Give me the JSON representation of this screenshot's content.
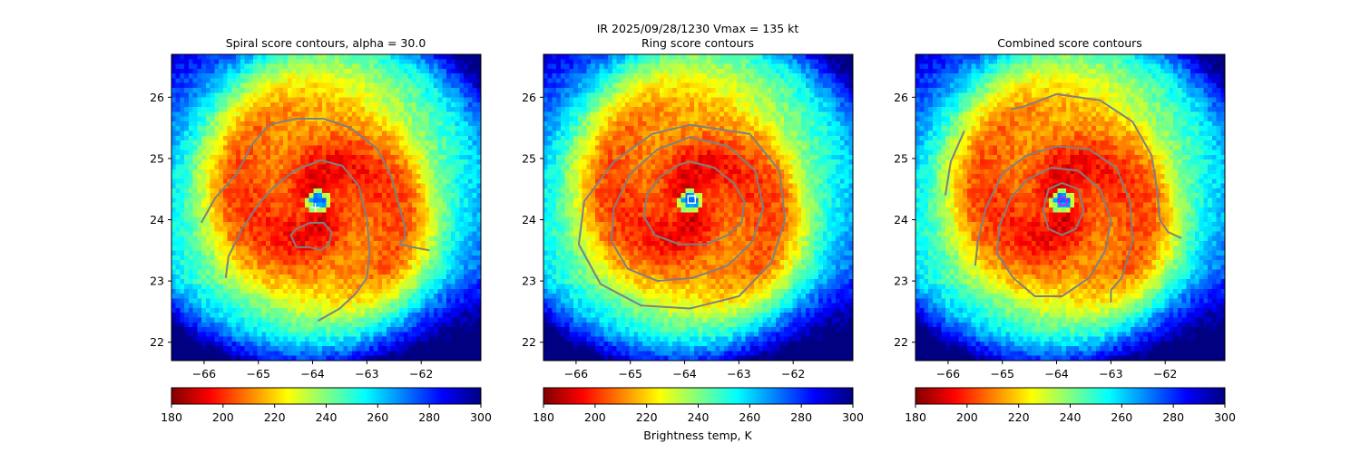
{
  "figure": {
    "suptitle": "IR  2025/09/28/1230    Vmax = 135 kt",
    "colorbar_label": "Brightness temp, K"
  },
  "colormap": {
    "name": "jet_r",
    "stops": [
      "#800000",
      "#ff0000",
      "#ff8000",
      "#ffff00",
      "#80ff80",
      "#00ffff",
      "#0080ff",
      "#0000ff",
      "#000080"
    ],
    "range": [
      180,
      300
    ],
    "ticks": [
      180,
      200,
      220,
      240,
      260,
      280,
      300
    ],
    "contour_color": "#808080"
  },
  "chart_data": [
    {
      "type": "heatmap",
      "title": "Spiral score contours, alpha = 30.0",
      "xlim": [
        -66.6,
        -60.9
      ],
      "ylim": [
        21.7,
        26.7
      ],
      "xticks": [
        -66,
        -65,
        -64,
        -63,
        -62
      ],
      "yticks": [
        22,
        23,
        24,
        25,
        26
      ],
      "eye_center": [
        -63.9,
        24.3
      ],
      "marker": {
        "type": "plus",
        "lon": -63.95,
        "lat": 24.2,
        "color": "#ffffff"
      },
      "contours": [
        {
          "lon": [
            -66.05,
            -65.8,
            -65.4,
            -65.1,
            -64.8,
            -64.3,
            -63.8,
            -63.3,
            -62.8,
            -62.55,
            -62.4,
            -62.3,
            -62.3,
            -62.4,
            -62.15,
            -61.85
          ],
          "lat": [
            23.95,
            24.35,
            24.75,
            25.25,
            25.55,
            25.65,
            25.65,
            25.5,
            25.15,
            24.7,
            24.2,
            23.9,
            23.7,
            23.6,
            23.55,
            23.5
          ]
        },
        {
          "lon": [
            -65.6,
            -65.55,
            -65.3,
            -65.0,
            -64.7,
            -64.3,
            -63.85,
            -63.45,
            -63.15,
            -63.0,
            -62.95,
            -63.0,
            -63.2,
            -63.5,
            -63.9
          ],
          "lat": [
            23.05,
            23.4,
            23.85,
            24.25,
            24.55,
            24.82,
            24.97,
            24.88,
            24.55,
            24.0,
            23.5,
            23.05,
            22.8,
            22.55,
            22.35
          ]
        },
        {
          "lon": [
            -64.05,
            -64.3,
            -64.4,
            -64.3,
            -64.05,
            -63.8,
            -63.65,
            -63.7,
            -63.85,
            -64.05
          ],
          "lat": [
            23.55,
            23.55,
            23.75,
            23.85,
            23.95,
            23.95,
            23.8,
            23.6,
            23.5,
            23.55
          ]
        }
      ]
    },
    {
      "type": "heatmap",
      "title": "Ring score contours",
      "xlim": [
        -66.6,
        -60.9
      ],
      "ylim": [
        21.7,
        26.7
      ],
      "xticks": [
        -66,
        -65,
        -64,
        -63,
        -62
      ],
      "yticks": [
        22,
        23,
        24,
        25,
        26
      ],
      "eye_center": [
        -63.9,
        24.3
      ],
      "marker": {
        "type": "square",
        "lon": -63.87,
        "lat": 24.33,
        "color": "#ffffff"
      },
      "contours": [
        {
          "lon": [
            -63.9,
            -63.45,
            -63.1,
            -62.9,
            -62.95,
            -63.2,
            -63.6,
            -64.1,
            -64.55,
            -64.75,
            -64.7,
            -64.45,
            -64.1,
            -63.9
          ],
          "lat": [
            24.95,
            24.85,
            24.6,
            24.3,
            23.95,
            23.75,
            23.6,
            23.6,
            23.75,
            24.05,
            24.4,
            24.7,
            24.9,
            24.95
          ]
        },
        {
          "lon": [
            -63.9,
            -63.2,
            -62.7,
            -62.55,
            -62.75,
            -63.2,
            -63.85,
            -64.5,
            -65.05,
            -65.35,
            -65.3,
            -65.0,
            -64.5,
            -63.9
          ],
          "lat": [
            25.35,
            25.2,
            24.8,
            24.2,
            23.65,
            23.25,
            23.05,
            23.0,
            23.2,
            23.65,
            24.2,
            24.75,
            25.15,
            25.35
          ]
        },
        {
          "lon": [
            -63.9,
            -62.8,
            -62.25,
            -62.15,
            -62.4,
            -63.0,
            -63.9,
            -64.8,
            -65.55,
            -65.95,
            -65.85,
            -65.3,
            -64.6,
            -63.9
          ],
          "lat": [
            25.55,
            25.4,
            24.8,
            24.0,
            23.3,
            22.75,
            22.55,
            22.6,
            22.95,
            23.6,
            24.3,
            24.95,
            25.4,
            25.55
          ]
        }
      ]
    },
    {
      "type": "heatmap",
      "title": "Combined score contours",
      "xlim": [
        -66.6,
        -60.9
      ],
      "ylim": [
        21.7,
        26.7
      ],
      "xticks": [
        -66,
        -65,
        -64,
        -63,
        -62
      ],
      "yticks": [
        22,
        23,
        24,
        25,
        26
      ],
      "eye_center": [
        -63.9,
        24.3
      ],
      "marker": {
        "type": "circle",
        "lon": -63.88,
        "lat": 24.3,
        "color": "#ff00ff"
      },
      "contours": [
        {
          "lon": [
            -66.05,
            -65.95,
            -65.7
          ],
          "lat": [
            24.4,
            24.95,
            25.45
          ]
        },
        {
          "lon": [
            -64.85,
            -64.6,
            -64.0,
            -63.2,
            -62.6,
            -62.25,
            -62.15,
            -62.1,
            -61.95,
            -61.7
          ],
          "lat": [
            25.8,
            25.85,
            26.05,
            25.95,
            25.6,
            25.05,
            24.5,
            24.0,
            23.8,
            23.7
          ]
        },
        {
          "lon": [
            -65.5,
            -65.45,
            -65.3,
            -65.0,
            -64.55,
            -64.0,
            -63.4,
            -62.9,
            -62.65,
            -62.6,
            -62.8,
            -63.0,
            -63.0
          ],
          "lat": [
            23.25,
            23.65,
            24.2,
            24.75,
            25.05,
            25.2,
            25.15,
            24.85,
            24.3,
            23.65,
            23.05,
            22.85,
            22.65
          ]
        },
        {
          "lon": [
            -65.1,
            -65.05,
            -64.85,
            -64.55,
            -64.1,
            -63.6,
            -63.2,
            -63.0,
            -63.1,
            -63.4,
            -63.9,
            -64.4,
            -64.8,
            -65.1
          ],
          "lat": [
            23.45,
            23.9,
            24.35,
            24.65,
            24.85,
            24.8,
            24.5,
            24.0,
            23.5,
            23.05,
            22.75,
            22.75,
            23.05,
            23.45
          ]
        },
        {
          "lon": [
            -63.9,
            -63.6,
            -63.5,
            -63.65,
            -63.9,
            -64.15,
            -64.25,
            -64.15,
            -63.9
          ],
          "lat": [
            24.6,
            24.5,
            24.15,
            23.85,
            23.75,
            23.85,
            24.15,
            24.5,
            24.6
          ]
        }
      ]
    }
  ]
}
